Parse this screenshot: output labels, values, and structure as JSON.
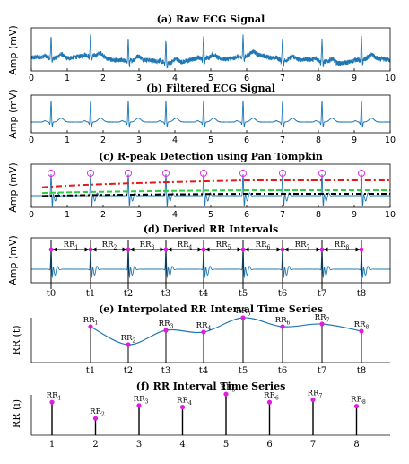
{
  "colors": {
    "signal": "#1f77b4",
    "marker": "#e01ce0",
    "threshold_high": "#e31a1c",
    "threshold_mid": "#2ecc40",
    "threshold_low": "#000000",
    "peak_circle": "#e01ce0"
  },
  "chart_data": [
    {
      "id": "a",
      "type": "line",
      "title": "(a) Raw ECG Signal",
      "xlabel": "",
      "ylabel": "Amp (mV)",
      "xlim": [
        0,
        10
      ],
      "xticks": [
        "0",
        "1",
        "2",
        "3",
        "4",
        "5",
        "6",
        "7",
        "8",
        "9",
        "10"
      ],
      "peak_times": [
        0.55,
        1.65,
        2.7,
        3.75,
        4.8,
        5.9,
        7.0,
        8.1,
        9.2
      ]
    },
    {
      "id": "b",
      "type": "line",
      "title": "(b) Filtered ECG Signal",
      "xlabel": "",
      "ylabel": "Amp (mV)",
      "xlim": [
        0,
        10
      ],
      "xticks": [
        "0",
        "1",
        "2",
        "3",
        "4",
        "5",
        "6",
        "7",
        "8",
        "9",
        "10"
      ],
      "peak_times": [
        0.55,
        1.65,
        2.7,
        3.75,
        4.8,
        5.9,
        7.0,
        8.1,
        9.2
      ]
    },
    {
      "id": "c",
      "type": "line",
      "title": "(c) R-peak Detection using Pan Tompkin",
      "xlabel": "",
      "ylabel": "Amp (mV)",
      "xlim": [
        0,
        10
      ],
      "xticks": [
        "0",
        "1",
        "2",
        "3",
        "4",
        "5",
        "6",
        "7",
        "8",
        "9",
        "10"
      ],
      "peak_times": [
        0.55,
        1.65,
        2.7,
        3.75,
        4.8,
        5.9,
        7.0,
        8.1,
        9.2
      ]
    },
    {
      "id": "d",
      "type": "line",
      "title": "(d) Derived RR Intervals",
      "xlabel": "",
      "ylabel": "Amp (mV)",
      "peak_labels": [
        "t0",
        "t1",
        "t2",
        "t3",
        "t4",
        "t5",
        "t6",
        "t7",
        "t8"
      ],
      "peak_times": [
        0.55,
        1.65,
        2.7,
        3.75,
        4.8,
        5.9,
        7.0,
        8.1,
        9.2
      ],
      "intervals": [
        {
          "base": "RR",
          "sub": "1"
        },
        {
          "base": "RR",
          "sub": "2"
        },
        {
          "base": "RR",
          "sub": "3"
        },
        {
          "base": "RR",
          "sub": "4"
        },
        {
          "base": "RR",
          "sub": "5"
        },
        {
          "base": "RR",
          "sub": "6"
        },
        {
          "base": "RR",
          "sub": "7"
        },
        {
          "base": "RR",
          "sub": "8"
        }
      ]
    },
    {
      "id": "e",
      "type": "line",
      "title": "(e) Interpolated RR Interval Time Series",
      "xlabel": "",
      "ylabel": "RR (t)",
      "x_labels": [
        "t1",
        "t2",
        "t3",
        "t4",
        "t5",
        "t6",
        "t7",
        "t8"
      ],
      "x": [
        1.65,
        2.7,
        3.75,
        4.8,
        5.9,
        7.0,
        8.1,
        9.2
      ],
      "values": [
        0.72,
        0.52,
        0.68,
        0.66,
        0.82,
        0.72,
        0.75,
        0.67
      ],
      "point_labels": [
        {
          "base": "RR",
          "sub": "1"
        },
        {
          "base": "RR",
          "sub": "2"
        },
        {
          "base": "RR",
          "sub": "3"
        },
        {
          "base": "RR",
          "sub": "4"
        },
        {
          "base": "RR",
          "sub": "5"
        },
        {
          "base": "RR",
          "sub": "6"
        },
        {
          "base": "RR",
          "sub": "7"
        },
        {
          "base": "RR",
          "sub": "8"
        }
      ]
    },
    {
      "id": "f",
      "type": "scatter",
      "title": "(f) RR Interval Time Series",
      "xlabel": "",
      "ylabel": "RR (i)",
      "categories": [
        "1",
        "2",
        "3",
        "4",
        "5",
        "6",
        "7",
        "8"
      ],
      "values": [
        0.72,
        0.52,
        0.68,
        0.66,
        0.82,
        0.72,
        0.75,
        0.67
      ],
      "point_labels": [
        {
          "base": "RR",
          "sub": "1"
        },
        {
          "base": "RR",
          "sub": "2"
        },
        {
          "base": "RR",
          "sub": "3"
        },
        {
          "base": "RR",
          "sub": "4"
        },
        {
          "base": "RR",
          "sub": "5"
        },
        {
          "base": "RR",
          "sub": "6"
        },
        {
          "base": "RR",
          "sub": "7"
        },
        {
          "base": "RR",
          "sub": "8"
        }
      ]
    }
  ]
}
